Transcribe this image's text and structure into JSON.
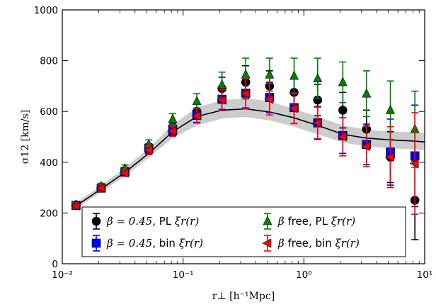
{
  "chart_data": {
    "type": "scatter",
    "xscale": "log",
    "xlim": [
      0.01,
      10
    ],
    "ylim": [
      0,
      1000
    ],
    "xlabel": "r⊥ [h⁻¹Mpc]",
    "ylabel": "σ12 [km/s]",
    "x_tick_labels": [
      "10⁻²",
      "10⁻¹",
      "10⁰",
      "10¹"
    ],
    "y_tick_labels": [
      "0",
      "200",
      "400",
      "600",
      "800",
      "1000"
    ],
    "y_ticks": [
      0,
      200,
      400,
      600,
      800,
      1000
    ],
    "legend_position": "lower-left",
    "model": {
      "x": [
        0.013,
        0.021,
        0.033,
        0.052,
        0.082,
        0.13,
        0.21,
        0.33,
        0.52,
        0.83,
        1.3,
        2.1,
        3.3,
        5.2,
        8.3,
        10
      ],
      "y": [
        228,
        295,
        360,
        435,
        520,
        580,
        605,
        610,
        598,
        575,
        545,
        510,
        495,
        488,
        483,
        480
      ],
      "lower": [
        218,
        282,
        345,
        418,
        495,
        545,
        572,
        578,
        565,
        540,
        510,
        478,
        462,
        455,
        450,
        448
      ],
      "upper": [
        240,
        308,
        378,
        455,
        548,
        615,
        645,
        652,
        640,
        610,
        580,
        545,
        528,
        520,
        518,
        515
      ],
      "line_color": "#000000",
      "band_color": "#cccccc"
    },
    "series": [
      {
        "key": "pl045",
        "legend_math": "β = 0.45",
        "legend_text": ", PL ",
        "legend_tail": "ξr(r)",
        "marker": "circle",
        "color": "#000000",
        "x": [
          0.013,
          0.021,
          0.033,
          0.052,
          0.082,
          0.13,
          0.21,
          0.33,
          0.52,
          0.83,
          1.3,
          2.1,
          3.3,
          5.2,
          8.3
        ],
        "y": [
          232,
          300,
          365,
          452,
          540,
          600,
          690,
          715,
          700,
          675,
          645,
          605,
          530,
          420,
          250
        ],
        "err": [
          10,
          12,
          14,
          18,
          20,
          28,
          45,
          65,
          60,
          55,
          62,
          70,
          75,
          100,
          155
        ]
      },
      {
        "key": "bin045",
        "legend_math": "β = 0.45",
        "legend_text": ", bin ",
        "legend_tail": "ξr(r)",
        "marker": "square",
        "color": "#0000ff",
        "x": [
          0.013,
          0.021,
          0.033,
          0.052,
          0.082,
          0.13,
          0.21,
          0.33,
          0.52,
          0.83,
          1.3,
          2.1,
          3.3,
          5.2,
          8.3
        ],
        "y": [
          230,
          298,
          362,
          455,
          525,
          585,
          648,
          672,
          655,
          615,
          555,
          505,
          470,
          440,
          425
        ],
        "err": [
          10,
          12,
          14,
          18,
          20,
          28,
          40,
          58,
          60,
          62,
          65,
          70,
          80,
          130,
          200
        ]
      },
      {
        "key": "plfree",
        "legend_math": "β",
        "legend_text": " free, PL ",
        "legend_tail": "ξr(r)",
        "marker": "triangle-up",
        "color": "#008000",
        "x": [
          0.013,
          0.021,
          0.033,
          0.052,
          0.082,
          0.13,
          0.21,
          0.33,
          0.52,
          0.83,
          1.3,
          2.1,
          3.3,
          5.2,
          8.3
        ],
        "y": [
          232,
          305,
          375,
          470,
          570,
          640,
          705,
          745,
          745,
          740,
          730,
          715,
          670,
          605,
          530
        ],
        "err": [
          10,
          12,
          14,
          18,
          22,
          30,
          50,
          65,
          65,
          70,
          80,
          80,
          90,
          115,
          150
        ]
      },
      {
        "key": "binfree",
        "legend_math": "β",
        "legend_text": " free, bin ",
        "legend_tail": "ξr(r)",
        "marker": "triangle-left",
        "color": "#ff0000",
        "x": [
          0.013,
          0.021,
          0.033,
          0.052,
          0.082,
          0.13,
          0.21,
          0.33,
          0.52,
          0.83,
          1.3,
          2.1,
          3.3,
          5.2,
          8.3
        ],
        "y": [
          228,
          298,
          358,
          448,
          522,
          582,
          645,
          670,
          648,
          612,
          555,
          500,
          462,
          420,
          395
        ],
        "err": [
          10,
          12,
          14,
          18,
          20,
          28,
          42,
          60,
          62,
          60,
          62,
          75,
          80,
          120,
          200
        ]
      }
    ]
  }
}
